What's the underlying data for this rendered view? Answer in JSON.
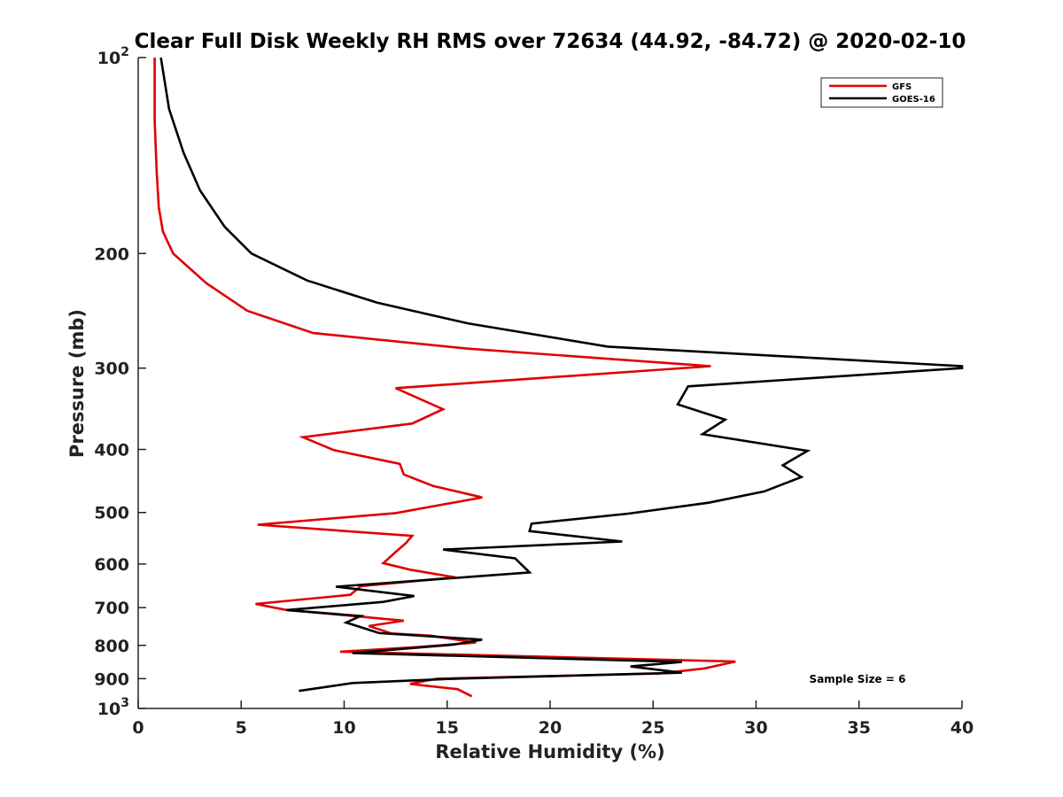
{
  "chart_data": {
    "type": "line",
    "title": "Clear Full Disk Weekly RH RMS over 72634 (44.92, -84.72) @ 2020-02-10",
    "xlabel": "Relative Humidity (%)",
    "ylabel": "Pressure (mb)",
    "xlim": [
      0,
      40
    ],
    "ylim": [
      100,
      1000
    ],
    "yscale": "log",
    "y_reversed": true,
    "xticks": [
      0,
      5,
      10,
      15,
      20,
      25,
      30,
      35,
      40
    ],
    "xtick_labels": [
      "0",
      "5",
      "10",
      "15",
      "20",
      "25",
      "30",
      "35",
      "40"
    ],
    "yticks": [
      {
        "value": 100,
        "base": "10",
        "exp": "2"
      },
      {
        "value": 200,
        "label": "200"
      },
      {
        "value": 300,
        "label": "300"
      },
      {
        "value": 400,
        "label": "400"
      },
      {
        "value": 500,
        "label": "500"
      },
      {
        "value": 600,
        "label": "600"
      },
      {
        "value": 700,
        "label": "700"
      },
      {
        "value": 800,
        "label": "800"
      },
      {
        "value": 900,
        "label": "900"
      },
      {
        "value": 1000,
        "base": "10",
        "exp": "3"
      }
    ],
    "legend_position": "top-right",
    "annotation": "Sample Size = 6",
    "series": [
      {
        "name": "GFS",
        "color": "#e00000",
        "points": [
          [
            0.8,
            100
          ],
          [
            0.8,
            125
          ],
          [
            0.9,
            150
          ],
          [
            1.0,
            170
          ],
          [
            1.2,
            185
          ],
          [
            1.7,
            200
          ],
          [
            3.3,
            222
          ],
          [
            5.3,
            245
          ],
          [
            8.5,
            265
          ],
          [
            16.0,
            280
          ],
          [
            27.8,
            298
          ],
          [
            12.5,
            322
          ],
          [
            14.8,
            347
          ],
          [
            13.3,
            365
          ],
          [
            8.0,
            383
          ],
          [
            9.5,
            401
          ],
          [
            12.7,
            421
          ],
          [
            12.9,
            437
          ],
          [
            14.3,
            455
          ],
          [
            16.7,
            474
          ],
          [
            12.5,
            501
          ],
          [
            5.8,
            522
          ],
          [
            13.3,
            543
          ],
          [
            13.0,
            557
          ],
          [
            12.5,
            575
          ],
          [
            11.9,
            598
          ],
          [
            13.2,
            612
          ],
          [
            15.4,
            629
          ],
          [
            10.8,
            649
          ],
          [
            10.3,
            669
          ],
          [
            5.7,
            691
          ],
          [
            7.1,
            705
          ],
          [
            12.9,
            733
          ],
          [
            11.2,
            747
          ],
          [
            12.3,
            767
          ],
          [
            14.2,
            773
          ],
          [
            16.4,
            792
          ],
          [
            13.5,
            805
          ],
          [
            9.8,
            818
          ],
          [
            29.0,
            847
          ],
          [
            27.5,
            868
          ],
          [
            25.3,
            884
          ],
          [
            14.5,
            900
          ],
          [
            13.2,
            917
          ],
          [
            15.5,
            934
          ],
          [
            16.2,
            958
          ]
        ]
      },
      {
        "name": "GOES-16",
        "color": "#000000",
        "points": [
          [
            1.1,
            100
          ],
          [
            1.5,
            120
          ],
          [
            2.2,
            140
          ],
          [
            3.0,
            160
          ],
          [
            4.2,
            182
          ],
          [
            5.5,
            200
          ],
          [
            8.2,
            220
          ],
          [
            11.6,
            238
          ],
          [
            16.0,
            256
          ],
          [
            22.8,
            278
          ],
          [
            40.0,
            298
          ],
          [
            40.0,
            300
          ],
          [
            26.7,
            320
          ],
          [
            26.2,
            341
          ],
          [
            28.5,
            360
          ],
          [
            27.4,
            379
          ],
          [
            32.5,
            402
          ],
          [
            31.3,
            423
          ],
          [
            32.2,
            441
          ],
          [
            30.4,
            464
          ],
          [
            27.7,
            483
          ],
          [
            23.8,
            502
          ],
          [
            19.1,
            520
          ],
          [
            19.0,
            534
          ],
          [
            23.5,
            554
          ],
          [
            14.8,
            570
          ],
          [
            18.3,
            588
          ],
          [
            19.0,
            618
          ],
          [
            9.6,
            650
          ],
          [
            13.4,
            672
          ],
          [
            11.9,
            686
          ],
          [
            7.2,
            706
          ],
          [
            10.8,
            721
          ],
          [
            10.1,
            738
          ],
          [
            11.7,
            766
          ],
          [
            16.7,
            784
          ],
          [
            15.3,
            798
          ],
          [
            10.4,
            822
          ],
          [
            26.4,
            848
          ],
          [
            23.9,
            862
          ],
          [
            26.4,
            881
          ],
          [
            15.4,
            900
          ],
          [
            10.4,
            914
          ],
          [
            7.8,
            940
          ]
        ]
      }
    ]
  }
}
